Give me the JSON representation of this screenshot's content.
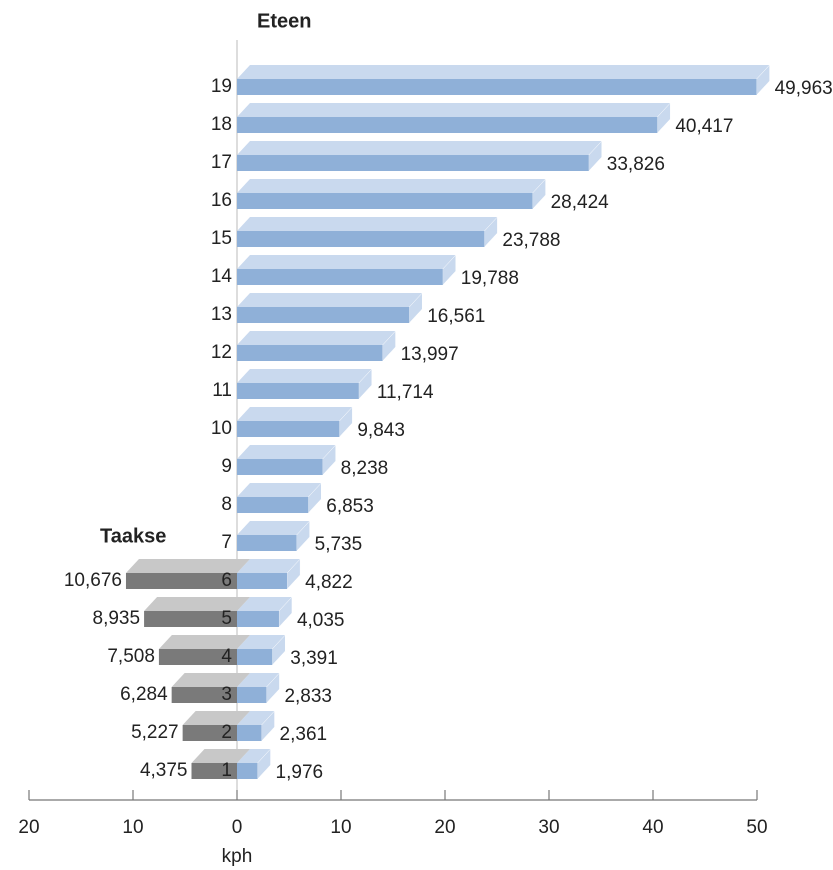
{
  "chart_data": {
    "type": "bar",
    "xlabel": "kph",
    "xlim": [
      -20,
      50
    ],
    "xticks": [
      {
        "value": -20,
        "label": "20"
      },
      {
        "value": -10,
        "label": "10"
      },
      0,
      10,
      20,
      30,
      40,
      50
    ],
    "series": [
      {
        "name": "Eteen",
        "color": "#8fb0d8",
        "top_color": "#c9d9ee",
        "categories": [
          "1",
          "2",
          "3",
          "4",
          "5",
          "6",
          "7",
          "8",
          "9",
          "10",
          "11",
          "12",
          "13",
          "14",
          "15",
          "16",
          "17",
          "18",
          "19"
        ],
        "values": [
          1.976,
          2.361,
          2.833,
          3.391,
          4.035,
          4.822,
          5.735,
          6.853,
          8.238,
          9.843,
          11.714,
          13.997,
          16.561,
          19.788,
          23.788,
          28.424,
          33.826,
          40.417,
          49.963
        ],
        "value_labels": [
          "1,976",
          "2,361",
          "2,833",
          "3,391",
          "4,035",
          "4,822",
          "5,735",
          "6,853",
          "8,238",
          "9,843",
          "11,714",
          "13,997",
          "16,561",
          "19,788",
          "23,788",
          "28,424",
          "33,826",
          "40,417",
          "49,963"
        ]
      },
      {
        "name": "Taakse",
        "color": "#7a7a7a",
        "top_color": "#c8c8c8",
        "categories": [
          "1",
          "2",
          "3",
          "4",
          "5",
          "6"
        ],
        "values": [
          -4.375,
          -5.227,
          -6.284,
          -7.508,
          -8.935,
          -10.676
        ],
        "value_labels": [
          "4,375",
          "5,227",
          "6,284",
          "7,508",
          "8,935",
          "10,676"
        ]
      }
    ]
  }
}
